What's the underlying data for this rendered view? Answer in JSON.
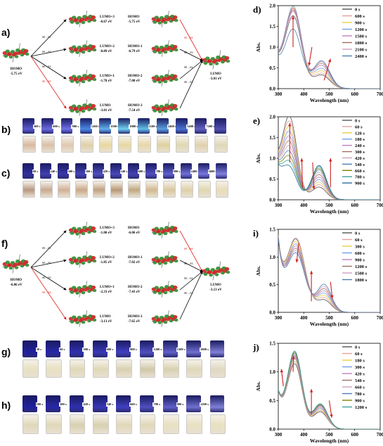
{
  "panels": {
    "a": {
      "label": "a)",
      "left_orbital": {
        "name": "HOMO",
        "energy": "-5.75 eV"
      },
      "mid_orbitals": [
        {
          "name": "LUMO+3",
          "energy": "-0.67 eV"
        },
        {
          "name": "LUMO+2",
          "energy": "-0.89 eV"
        },
        {
          "name": "LUMO+1",
          "energy": "-1.78 eV"
        },
        {
          "name": "LUMO",
          "energy": "-3.01 eV"
        }
      ],
      "right_orbitals": [
        {
          "name": "HOMO",
          "energy": "-5.75 eV"
        },
        {
          "name": "HOMO-1",
          "energy": "-6.79 eV"
        },
        {
          "name": "HOMO-2",
          "energy": "-7.00 eV"
        },
        {
          "name": "HOMO-3",
          "energy": "-7.54 eV"
        }
      ],
      "final_orbital": {
        "name": "LUMO",
        "energy": "-3.01 eV"
      },
      "transitions_left": [
        "S0→S1",
        "S0→S2",
        "S0→S3",
        "S0→S4"
      ],
      "transitions_right": [
        "S0→S4",
        "S0→S3",
        "S0→S2",
        "S0→S1"
      ]
    },
    "b": {
      "label": "b)",
      "times": [
        "300 s",
        "600 s",
        "900 s",
        "1200 s",
        "1500 s",
        "1800 s",
        "2100 s",
        "2400 s",
        "5400 s",
        "7200 s"
      ]
    },
    "c": {
      "label": "c)",
      "times": [
        "60 s",
        "240 s",
        "300 s",
        "360 s",
        "420 s",
        "540 s",
        "600 s",
        "780 s",
        "900 s",
        "2400 s",
        "3600 s"
      ]
    },
    "f": {
      "label": "f)",
      "left_orbital": {
        "name": "HOMO",
        "energy": "-6.06 eV"
      },
      "mid_orbitals": [
        {
          "name": "LUMO+3",
          "energy": "-1.00 eV"
        },
        {
          "name": "LUMO+2",
          "energy": "-1.85 eV"
        },
        {
          "name": "LUMO+1",
          "energy": "-2.33 eV"
        },
        {
          "name": "LUMO",
          "energy": "-3.13 eV"
        }
      ],
      "right_orbitals": [
        {
          "name": "HOMO",
          "energy": "-6.06 eV"
        },
        {
          "name": "HOMO-1",
          "energy": "-7.02 eV"
        },
        {
          "name": "HOMO-2",
          "energy": "-7.43 eV"
        },
        {
          "name": "HOMO-3",
          "energy": "-7.65 eV"
        }
      ],
      "final_orbital": {
        "name": "LUMO",
        "energy": "-3.13 eV"
      },
      "transitions_left": [
        "S0→S1",
        "S0→S2",
        "S0→S3",
        "S0→S4"
      ],
      "transitions_right": [
        "S0→S4",
        "S0→S3",
        "S0→S2",
        "S0→S1"
      ]
    },
    "g": {
      "label": "g)",
      "times": [
        "30 s",
        "60 s",
        "300 s",
        "600 s",
        "900 s",
        "1200 s",
        "1500 s",
        "1800 s"
      ]
    },
    "h": {
      "label": "h)",
      "times": [
        "180 s",
        "300 s",
        "420 s",
        "540 s",
        "660 s",
        "780 s",
        "900 s",
        "1200 s"
      ]
    }
  },
  "chart_data": [
    {
      "panel": "d)",
      "type": "line",
      "xlabel": "Wavelength (nm)",
      "ylabel": "Abs.",
      "xlim": [
        300,
        700
      ],
      "ylim": [
        0,
        2.0
      ],
      "xticks": [
        300,
        400,
        500,
        600,
        700
      ],
      "yticks": [
        0.0,
        0.5,
        1.0,
        1.5,
        2.0
      ],
      "legend": "top-right",
      "series": [
        {
          "name": "0 s",
          "color": "#555555",
          "peak1": 1.62,
          "peak2": 0.32
        },
        {
          "name": "600 s",
          "color": "#e8a0a0",
          "peak1": 1.78,
          "peak2": 0.36
        },
        {
          "name": "900 s",
          "color": "#e8d040",
          "peak1": 1.82,
          "peak2": 0.42
        },
        {
          "name": "1200 s",
          "color": "#6fa0e0",
          "peak1": 1.85,
          "peak2": 0.48
        },
        {
          "name": "1500 s",
          "color": "#c080c0",
          "peak1": 1.8,
          "peak2": 0.55
        },
        {
          "name": "1800 s",
          "color": "#a07060",
          "peak1": 1.75,
          "peak2": 0.6
        },
        {
          "name": "2100 s",
          "color": "#d0a0c0",
          "peak1": 1.72,
          "peak2": 0.64
        },
        {
          "name": "2400 s",
          "color": "#4a7fb0",
          "peak1": 1.3,
          "peak2": 0.66
        }
      ]
    },
    {
      "panel": "e)",
      "type": "line",
      "xlabel": "Wavelength (nm)",
      "ylabel": "Abs.",
      "xlim": [
        300,
        700
      ],
      "ylim": [
        0,
        2.0
      ],
      "xticks": [
        300,
        400,
        500,
        600,
        700
      ],
      "yticks": [
        0.0,
        0.5,
        1.0,
        1.5,
        2.0
      ],
      "legend": "top-right",
      "series": [
        {
          "name": "0 s",
          "color": "#555555",
          "peak1": 1.82,
          "peak2": 0.3
        },
        {
          "name": "60 s",
          "color": "#e8a0a0",
          "peak1": 1.7,
          "peak2": 0.36
        },
        {
          "name": "120 s",
          "color": "#e8d040",
          "peak1": 1.58,
          "peak2": 0.42
        },
        {
          "name": "180 s",
          "color": "#6fa0e0",
          "peak1": 1.46,
          "peak2": 0.48
        },
        {
          "name": "240 s",
          "color": "#c080c0",
          "peak1": 1.34,
          "peak2": 0.54
        },
        {
          "name": "300 s",
          "color": "#a07060",
          "peak1": 1.22,
          "peak2": 0.6
        },
        {
          "name": "420 s",
          "color": "#d0a0c0",
          "peak1": 1.1,
          "peak2": 0.66
        },
        {
          "name": "540 s",
          "color": "#4a7fb0",
          "peak1": 0.98,
          "peak2": 0.72
        },
        {
          "name": "660 s",
          "color": "#808000",
          "peak1": 0.86,
          "peak2": 0.76
        },
        {
          "name": "780 s",
          "color": "#40a0a0",
          "peak1": 0.74,
          "peak2": 0.8
        },
        {
          "name": "900 s",
          "color": "#2a6fa0",
          "peak1": 0.62,
          "peak2": 0.82
        }
      ]
    },
    {
      "panel": "i)",
      "type": "line",
      "xlabel": "Wavelength (nm)",
      "ylabel": "Abs.",
      "xlim": [
        300,
        700
      ],
      "ylim": [
        0,
        1.5
      ],
      "xticks": [
        300,
        400,
        500,
        600,
        700
      ],
      "yticks": [
        0.0,
        0.5,
        1.0,
        1.5
      ],
      "legend": "top-right",
      "series": [
        {
          "name": "0 s",
          "color": "#555555",
          "peak1": 1.3,
          "peak2": 0.22
        },
        {
          "name": "60 s",
          "color": "#e8a0a0",
          "peak1": 1.28,
          "peak2": 0.26
        },
        {
          "name": "300 s",
          "color": "#e8d040",
          "peak1": 1.24,
          "peak2": 0.3
        },
        {
          "name": "600 s",
          "color": "#6fa0e0",
          "peak1": 1.2,
          "peak2": 0.34
        },
        {
          "name": "900 s",
          "color": "#c080c0",
          "peak1": 1.16,
          "peak2": 0.38
        },
        {
          "name": "1200 s",
          "color": "#a07060",
          "peak1": 1.12,
          "peak2": 0.42
        },
        {
          "name": "1500 s",
          "color": "#d0a0c0",
          "peak1": 1.08,
          "peak2": 0.46
        },
        {
          "name": "1800 s",
          "color": "#4a7fb0",
          "peak1": 1.04,
          "peak2": 0.5
        }
      ]
    },
    {
      "panel": "j)",
      "type": "line",
      "xlabel": "Wavelength (nm)",
      "ylabel": "Abs.",
      "xlim": [
        300,
        700
      ],
      "ylim": [
        0,
        1.5
      ],
      "xticks": [
        300,
        400,
        500,
        600,
        700
      ],
      "yticks": [
        0.0,
        0.5,
        1.0,
        1.5
      ],
      "legend": "top-right",
      "series": [
        {
          "name": "0 s",
          "color": "#555555",
          "peak1": 1.1,
          "peak2": 0.3
        },
        {
          "name": "60 s",
          "color": "#e8a0a0",
          "peak1": 1.14,
          "peak2": 0.32
        },
        {
          "name": "180 s",
          "color": "#e8d040",
          "peak1": 1.18,
          "peak2": 0.34
        },
        {
          "name": "300 s",
          "color": "#6fa0e0",
          "peak1": 1.2,
          "peak2": 0.36
        },
        {
          "name": "420 s",
          "color": "#c080c0",
          "peak1": 1.22,
          "peak2": 0.38
        },
        {
          "name": "540 s",
          "color": "#a07060",
          "peak1": 1.24,
          "peak2": 0.4
        },
        {
          "name": "660 s",
          "color": "#d0a0c0",
          "peak1": 1.26,
          "peak2": 0.41
        },
        {
          "name": "780 s",
          "color": "#4a7fb0",
          "peak1": 1.28,
          "peak2": 0.42
        },
        {
          "name": "900 s",
          "color": "#808000",
          "peak1": 1.3,
          "peak2": 0.43
        },
        {
          "name": "1200 s",
          "color": "#40a0a0",
          "peak1": 1.32,
          "peak2": 0.44
        }
      ]
    }
  ]
}
